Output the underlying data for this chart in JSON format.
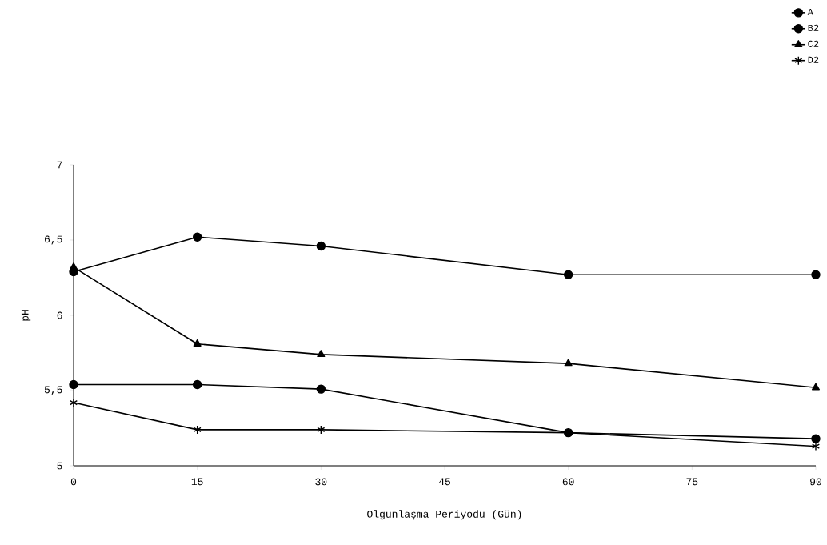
{
  "chart_data": {
    "type": "line",
    "xlabel": "Olgunlaşma Periyodu (Gün)",
    "ylabel": "pH",
    "x": [
      0,
      15,
      30,
      60,
      90
    ],
    "series": [
      {
        "name": "A",
        "color": "#000000",
        "marker": "circle",
        "values": [
          6.29,
          6.52,
          6.46,
          6.27,
          6.27
        ]
      },
      {
        "name": "B2",
        "color": "#000000",
        "marker": "circle",
        "values": [
          5.54,
          5.54,
          5.51,
          5.22,
          5.18
        ]
      },
      {
        "name": "C2",
        "color": "#000000",
        "marker": "triangle",
        "values": [
          6.32,
          5.81,
          5.74,
          5.68,
          5.52
        ]
      },
      {
        "name": "D2",
        "color": "#000000",
        "marker": "cross",
        "values": [
          5.42,
          5.24,
          5.24,
          5.22,
          5.13
        ]
      }
    ],
    "xlim": [
      0,
      90
    ],
    "xticks": [
      0,
      15,
      30,
      45,
      60,
      75,
      90
    ],
    "ylim": [
      5,
      7
    ],
    "yticks": [
      5,
      {
        "value": 5.5,
        "label": "5,5"
      },
      6,
      {
        "value": 6.5,
        "label": "6,5"
      },
      7
    ],
    "legend": "top right",
    "grid": false,
    "line_style": "solid"
  }
}
